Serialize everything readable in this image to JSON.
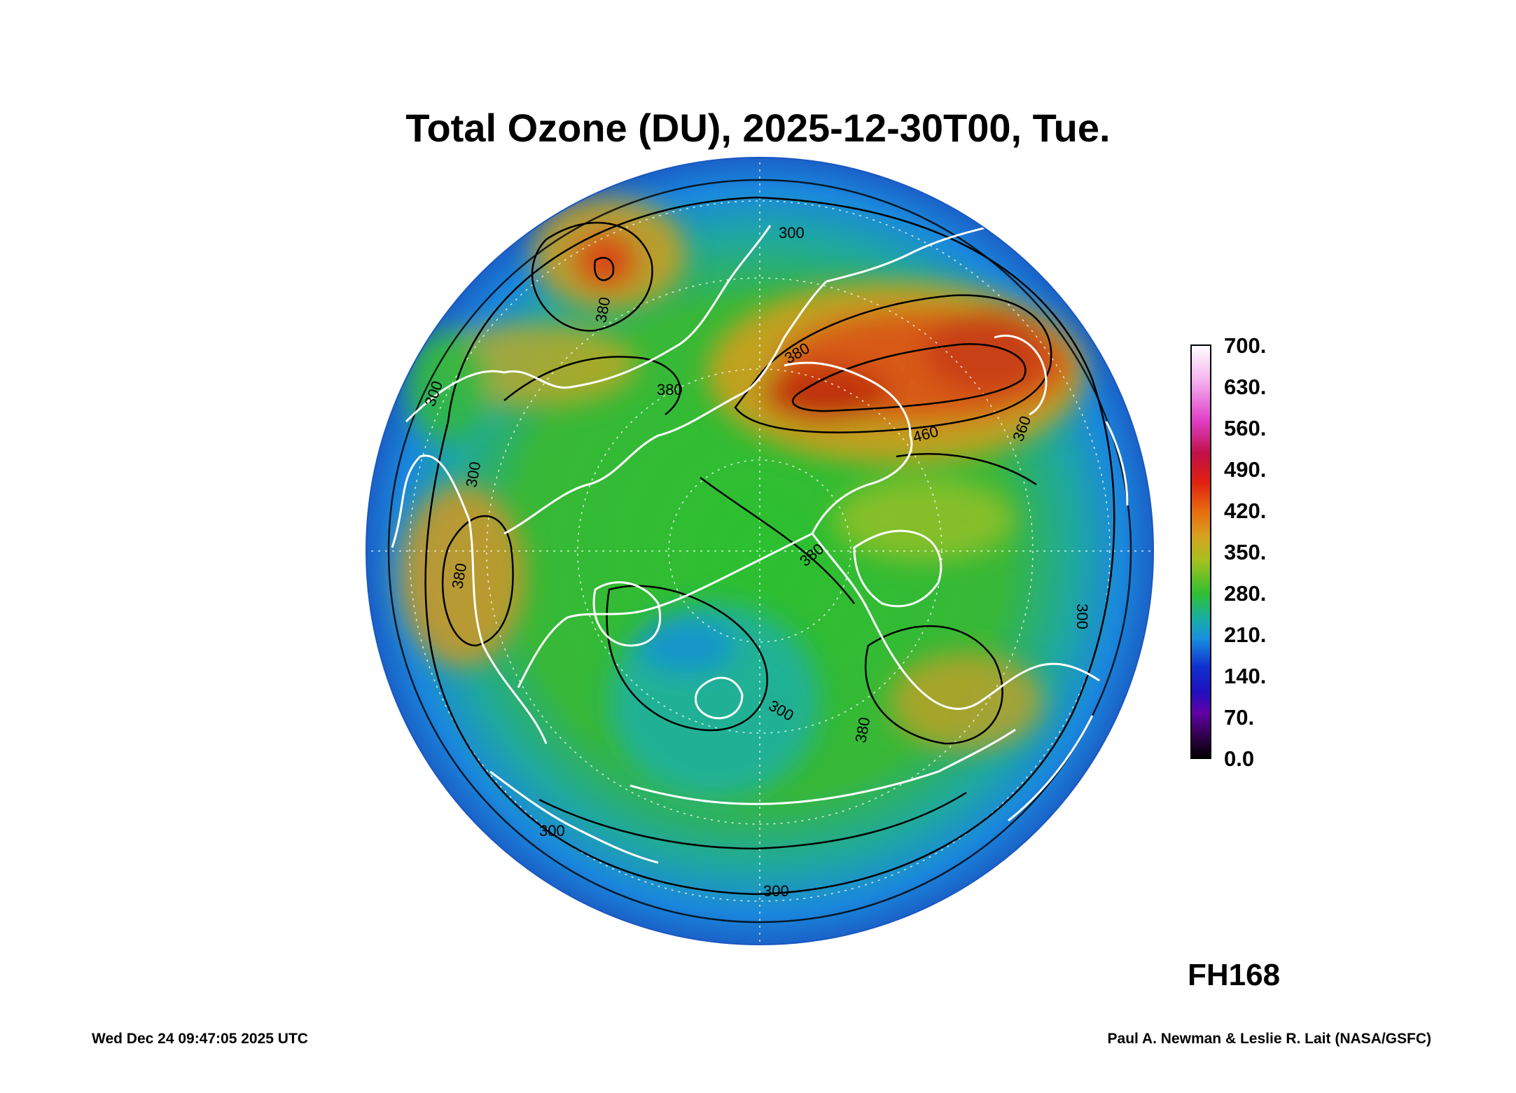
{
  "title": "Total Ozone (DU), 2025-12-30T00, Tue.",
  "forecast_hour": "FH168",
  "footer_left": "Wed Dec 24 09:47:05 2025 UTC",
  "footer_right": "Paul A. Newman & Leslie R. Lait (NASA/GSFC)",
  "colorbar": {
    "unit": "DU",
    "min": 0,
    "max": 700,
    "ticks": [
      "700.",
      "630.",
      "560.",
      "490.",
      "420.",
      "350.",
      "280.",
      "210.",
      "140.",
      "70.",
      "0.0"
    ]
  },
  "map": {
    "projection": "north-polar-stereographic",
    "contour_labels": [
      "300",
      "300",
      "300",
      "380",
      "380",
      "380",
      "460",
      "380",
      "380",
      "300",
      "300",
      "300",
      "380",
      "360"
    ],
    "colors": {
      "low": "#1e6fd0",
      "mid": "#30b040",
      "high": "#d04818",
      "coastline": "#ffffff",
      "contour": "#000000"
    }
  }
}
